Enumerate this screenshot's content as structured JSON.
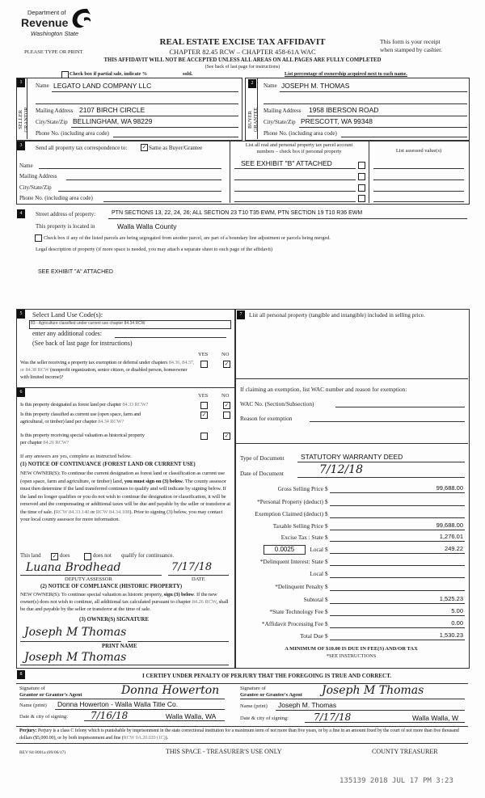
{
  "header": {
    "agency_line1": "Department of",
    "agency_line2": "Revenue",
    "agency_line3": "Washington State",
    "title": "REAL ESTATE EXCISE TAX AFFIDAVIT",
    "chapter": "CHAPTER 82.45 RCW – CHAPTER 458-61A WAC",
    "please": "PLEASE TYPE OR PRINT",
    "receipt_line1": "This form is your receipt",
    "receipt_line2": "when stamped by cashier.",
    "warning": "THIS AFFIDAVIT WILL NOT BE ACCEPTED UNLESS ALL AREAS ON ALL PAGES ARE FULLY COMPLETED",
    "see_back": "(See back of last page for instructions)",
    "partial_sale": "Check box if partial sale, indicate %",
    "sold": "sold.",
    "partial_sale_checked": false,
    "ownership_note": "List percentage of ownership acquired next to each name."
  },
  "seller": {
    "num": "1",
    "side_label": "SELLER GRANTOR",
    "name_label": "Name",
    "name": "LEGATO LAND COMPANY LLC",
    "mailing_label": "Mailing Address",
    "mailing": "2107 BIRCH CIRCLE",
    "city_label": "City/State/Zip",
    "city": "BELLINGHAM, WA  98229",
    "phone_label": "Phone No. (including area code)"
  },
  "buyer": {
    "num": "2",
    "side_label": "BUYER GRANTEE",
    "name_label": "Name",
    "name": "JOSEPH M. THOMAS",
    "mailing_label": "Mailing Address",
    "mailing": "1958 IBERSON ROAD",
    "city_label": "City/State/Zip",
    "city": "PRESCOTT, WA  99348",
    "phone_label": "Phone No. (including area code)"
  },
  "section3": {
    "num": "3",
    "send_label": "Send all property tax correspondence to:",
    "same_as_buyer": "Same as Buyer/Grantee",
    "same_checked": true,
    "name_label": "Name",
    "mailing_label": "Mailing Address",
    "city_label": "City/State/Zip",
    "phone_label": "Phone No. (including area code)",
    "parcel_header_line1": "List all real and personal property tax parcel account",
    "parcel_header_line2": "numbers – check box if personal property",
    "parcels": [
      "SEE EXHIBIT \"B\" ATTACHED",
      "",
      "",
      ""
    ],
    "assessed_header": "List assessed value(s)"
  },
  "section4": {
    "num": "4",
    "street_label": "Street address of property:",
    "street": "PTN SECTIONS 13, 22, 24, 26; ALL SECTION 23 T10 T35 EWM, PTN SECTION 19 T10 R36 EWM",
    "located_label": "This property is located in",
    "county": "Walla Walla County",
    "segregated_text": "Check box if any of the listed parcels are being segregated from another parcel, are part of a boundary line adjustment or parcels being merged.",
    "segregated_checked": false,
    "legal_label": "Legal description of property (if more space is needed, you may attach a separate sheet to each page of the affidavit)",
    "legal": "SEE EXHIBIT \"A\" ATTACHED"
  },
  "section5": {
    "num": "5",
    "land_use_label": "Select Land Use Code(s):",
    "land_use": "83 - Agriculture classified under current use chapter 84.34 RCW",
    "additional_label": "enter any additional codes:",
    "see_back": "(See back of last page for instructions)",
    "yes": "YES",
    "no": "NO",
    "q_text1": "Was the seller receiving a property tax exemption or deferral under",
    "q_text2": "chapters ",
    "q_links": "84.36, 84.37, or 84.38 RCW",
    "q_text3": " (nonprofit organization, senior",
    "q_text4": "citizen, or disabled person, homeowner with limited income)?",
    "q_answer": "no"
  },
  "section6": {
    "num": "6",
    "yes": "YES",
    "no": "NO",
    "q1_text": "Is this property designated as forest land per chapter ",
    "q1_link": "84.33 RCW?",
    "q1_answer": "no",
    "q2_text1": "Is this property classified as current use (open space, farm and",
    "q2_text2": "agricultural, or timber) land per chapter ",
    "q2_link": "84.34 RCW?",
    "q2_answer": "yes",
    "q3_text1": "Is this property receiving special valuation as historical property",
    "q3_text2": "per chapter ",
    "q3_link": "84.26 RCW?",
    "q3_answer": "no",
    "if_yes": "If any answers are yes, complete as instructed below.",
    "notice1_title": "(1) NOTICE OF CONTINUANCE  (FOREST LAND OR CURRENT USE)",
    "notice1_a": "NEW OWNER(S): To continue the current designation as forest land or classification as current use (open space, farm and agriculture, or timber) land, ",
    "notice1_bold": "you must sign on (3) below",
    "notice1_b": ". The county assessor must then determine if the land transferred continues to qualify and will indicate by signing below. If the land no longer qualifies or you do not wish to continue the designation or classification, it will be removed and the compensating or additional taxes will be due and payable by the seller or transferor at the time of sale. (",
    "notice1_link1": "RCW 84.33.140",
    "notice1_or": " or ",
    "notice1_link2": "RCW 84.34.108",
    "notice1_c": "). Prior to signing (3) below, you may contact your local county assessor for more information.",
    "this_land": "This land",
    "does": "does",
    "does_checked": true,
    "does_not": "does not",
    "does_not_checked": false,
    "qualify": "qualify for continuance.",
    "assessor_signature": "Luana Brodhead",
    "assessor_date": "7/17/18",
    "deputy_label": "DEPUTY ASSESSOR",
    "date_label": "DATE",
    "notice2_title": "(2) NOTICE OF COMPLIANCE (HISTORIC PROPERTY)",
    "notice2_a": "NEW OWNER(S): To continue special valuation as historic property, ",
    "notice2_bold": "sign (3) below",
    "notice2_b": ". If the new owner(s) does not wish to continue, all additional tax calculated pursuant to chapter ",
    "notice2_link": "84.26 RCW",
    "notice2_c": ", shall be due and payable by the seller or transferor at the time of sale.",
    "owner_sig_label": "(3) OWNER(S) SIGNATURE",
    "owner_signature": "Joseph M Thomas",
    "print_name_label": "PRINT NAME",
    "print_name": "Joseph M Thomas"
  },
  "section7": {
    "num": "7",
    "personal_property_label": "List all  personal property (tangible and intangible) included in selling price.",
    "exemption_label": "If claiming an exemption, list WAC number and reason for exemption:",
    "wac_label": "WAC No. (Section/Subsection)",
    "reason_label": "Reason for exemption",
    "doc_type_label": "Type of Document",
    "doc_type": "STATUTORY WARRANTY DEED",
    "doc_date_label": "Date of Document",
    "doc_date": "7/12/18",
    "local_rate": "0.0025",
    "rows": [
      {
        "label": "Gross Selling Price",
        "value": "99,688.00"
      },
      {
        "label": "*Personal Property (deduct)",
        "value": ""
      },
      {
        "label": "Exemption Claimed (deduct)",
        "value": ""
      },
      {
        "label": "Taxable Selling Price",
        "value": "99,688.00"
      },
      {
        "label": "Excise Tax : State",
        "value": "1,276.01"
      },
      {
        "label": "Local",
        "value": "249.22"
      },
      {
        "label": "*Delinquent Interest: State",
        "value": ""
      },
      {
        "label": "Local",
        "value": ""
      },
      {
        "label": "*Delinquent Penalty",
        "value": ""
      },
      {
        "label": "Subtotal",
        "value": "1,525.23"
      },
      {
        "label": "*State Technology Fee",
        "value": "5.00"
      },
      {
        "label": "*Affidavit Processing Fee",
        "value": "0.00"
      },
      {
        "label": "Total Due",
        "value": "1,530.23"
      }
    ],
    "currency": "$",
    "minimum": "A MINIMUM OF $10.00 IS DUE IN FEE(S) AND/OR TAX",
    "see_instructions": "*SEE INSTRUCTIONS"
  },
  "section8": {
    "num": "8",
    "certify": "I CERTIFY UNDER PENALTY OF PERJURY THAT THE FOREGOING IS TRUE AND CORRECT.",
    "grantor_sig_label1": "Signature of",
    "grantor_sig_label2": "Grantor or Grantor's Agent",
    "grantor_signature": "Donna Howerton",
    "grantee_sig_label1": "Signature of",
    "grantee_sig_label2": "Grantee or Grantee's Agent",
    "grantee_signature": "Joseph M Thomas",
    "name_print_label": "Name (print)",
    "grantor_name": "Donna Howerton - Walla Walla Title Co.",
    "grantee_name": "Joseph M. Thomas",
    "date_city_label": "Date & city of signing:",
    "grantor_date": "7/16/18",
    "grantor_city": "Walla Walla, WA",
    "grantee_date": "7/17/18",
    "grantee_city": "Walla Walla, W"
  },
  "footer": {
    "perjury_bold": "Perjury:",
    "perjury_text": " Perjury is a class C felony which is punishable by imprisonment in the state correctional institution for a maximum term of not more than five years, or by a fine in an amount fixed by the court of not more than five thousand dollars ($5,000.00), or by both imprisonment and fine (",
    "perjury_link": "RCW 9A.20.020 (1C)",
    "perjury_end": ").",
    "form_number": "REV 84 0001a (09/06/17)",
    "treasurer_space": "THIS SPACE - TREASURER'S USE ONLY",
    "county_treasurer": "COUNTY TREASURER",
    "stamp": "135139 2018 JUL 17 PM 3:23"
  }
}
